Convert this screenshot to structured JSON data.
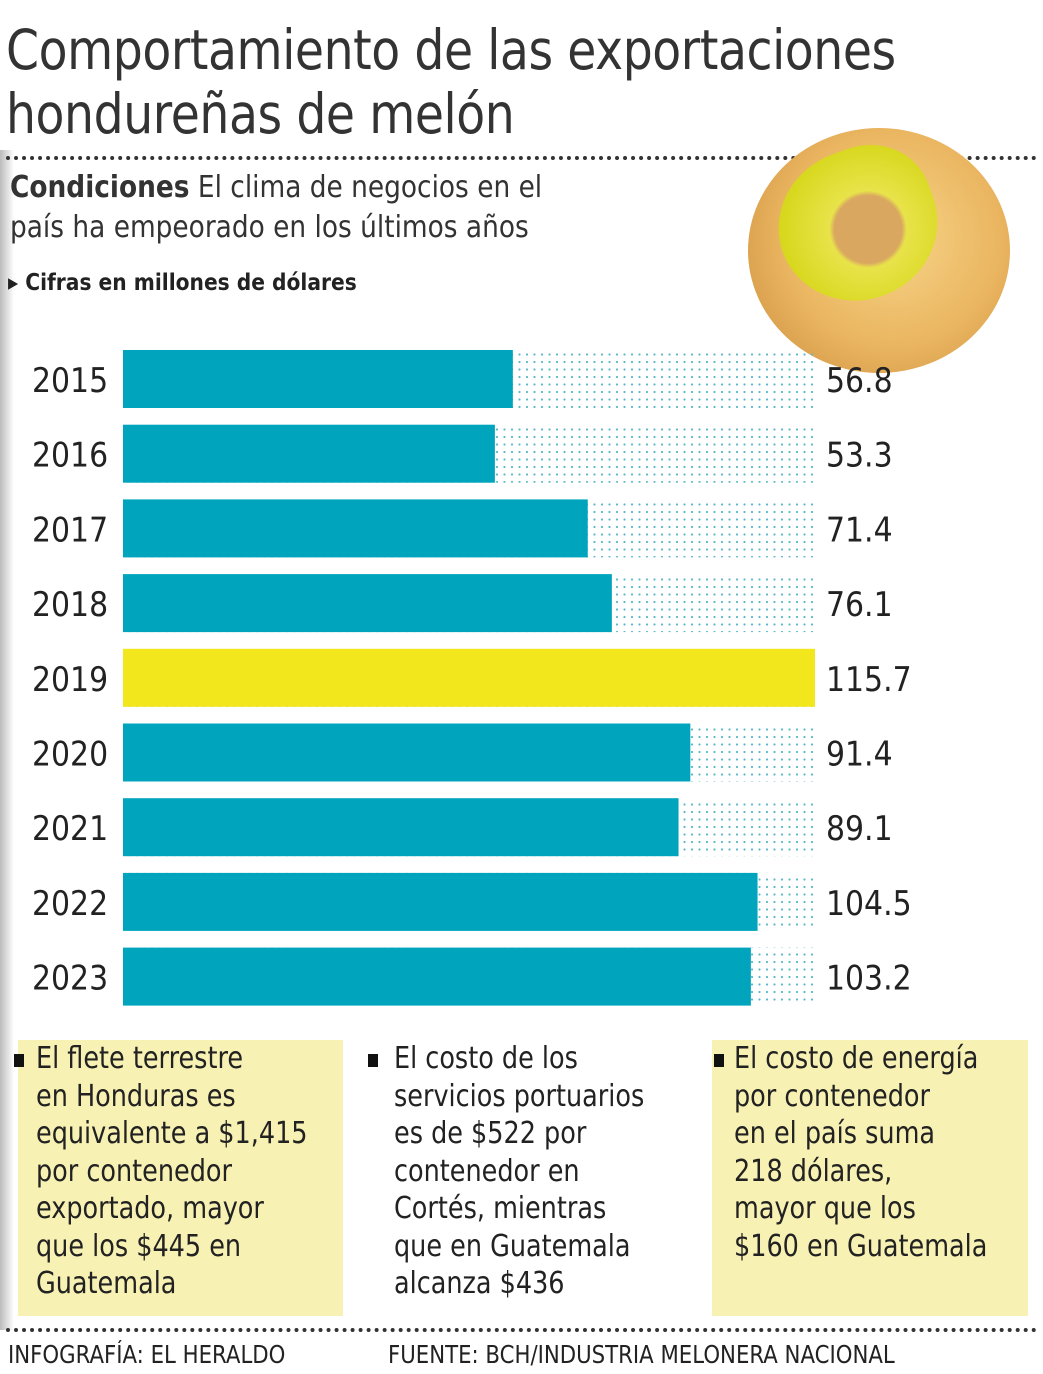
{
  "title": [
    "Comportamiento de las exportaciones",
    "hondureñas de melón"
  ],
  "subtitle": {
    "bold": "Condiciones",
    "text_line1": " El clima de negocios en el",
    "text_line2": "país ha empeorado en los últimos años"
  },
  "unit_note": "Cifras en millones de dólares",
  "chart_data": {
    "type": "bar",
    "orientation": "horizontal",
    "categories": [
      "2015",
      "2016",
      "2017",
      "2018",
      "2019",
      "2020",
      "2021",
      "2022",
      "2023"
    ],
    "values": [
      56.8,
      53.3,
      71.4,
      76.1,
      115.7,
      91.4,
      89.1,
      104.5,
      103.2
    ],
    "value_labels": [
      "56.8",
      "53.3",
      "71.4",
      "76.1",
      "115.7",
      "91.4",
      "89.1",
      "104.5",
      "103.2"
    ],
    "colors": {
      "default": "#00a5bd",
      "highlight": "#f2e61c",
      "highlight_category": "2019"
    },
    "ylabel": "Cifras en millones de dólares"
  },
  "notes": [
    "El flete terrestre\nen Honduras es\nequivalente a $1,415\npor contenedor\nexportado, mayor\nque los $445 en\nGuatemala",
    "El costo de los\nservicios portuarios\nes de $522 por\ncontenedor en\nCortés, mientras\nque en Guatemala\nalcanza $436",
    "El costo de energía\npor contenedor\nen el país suma\n218 dólares,\nmayor que los\n$160 en Guatemala"
  ],
  "note_bg": "#f8f1b4",
  "footer": {
    "credit": "INFOGRAFÍA: EL HERALDO",
    "source": "FUENTE: BCH/INDUSTRIA MELONERA NACIONAL"
  }
}
